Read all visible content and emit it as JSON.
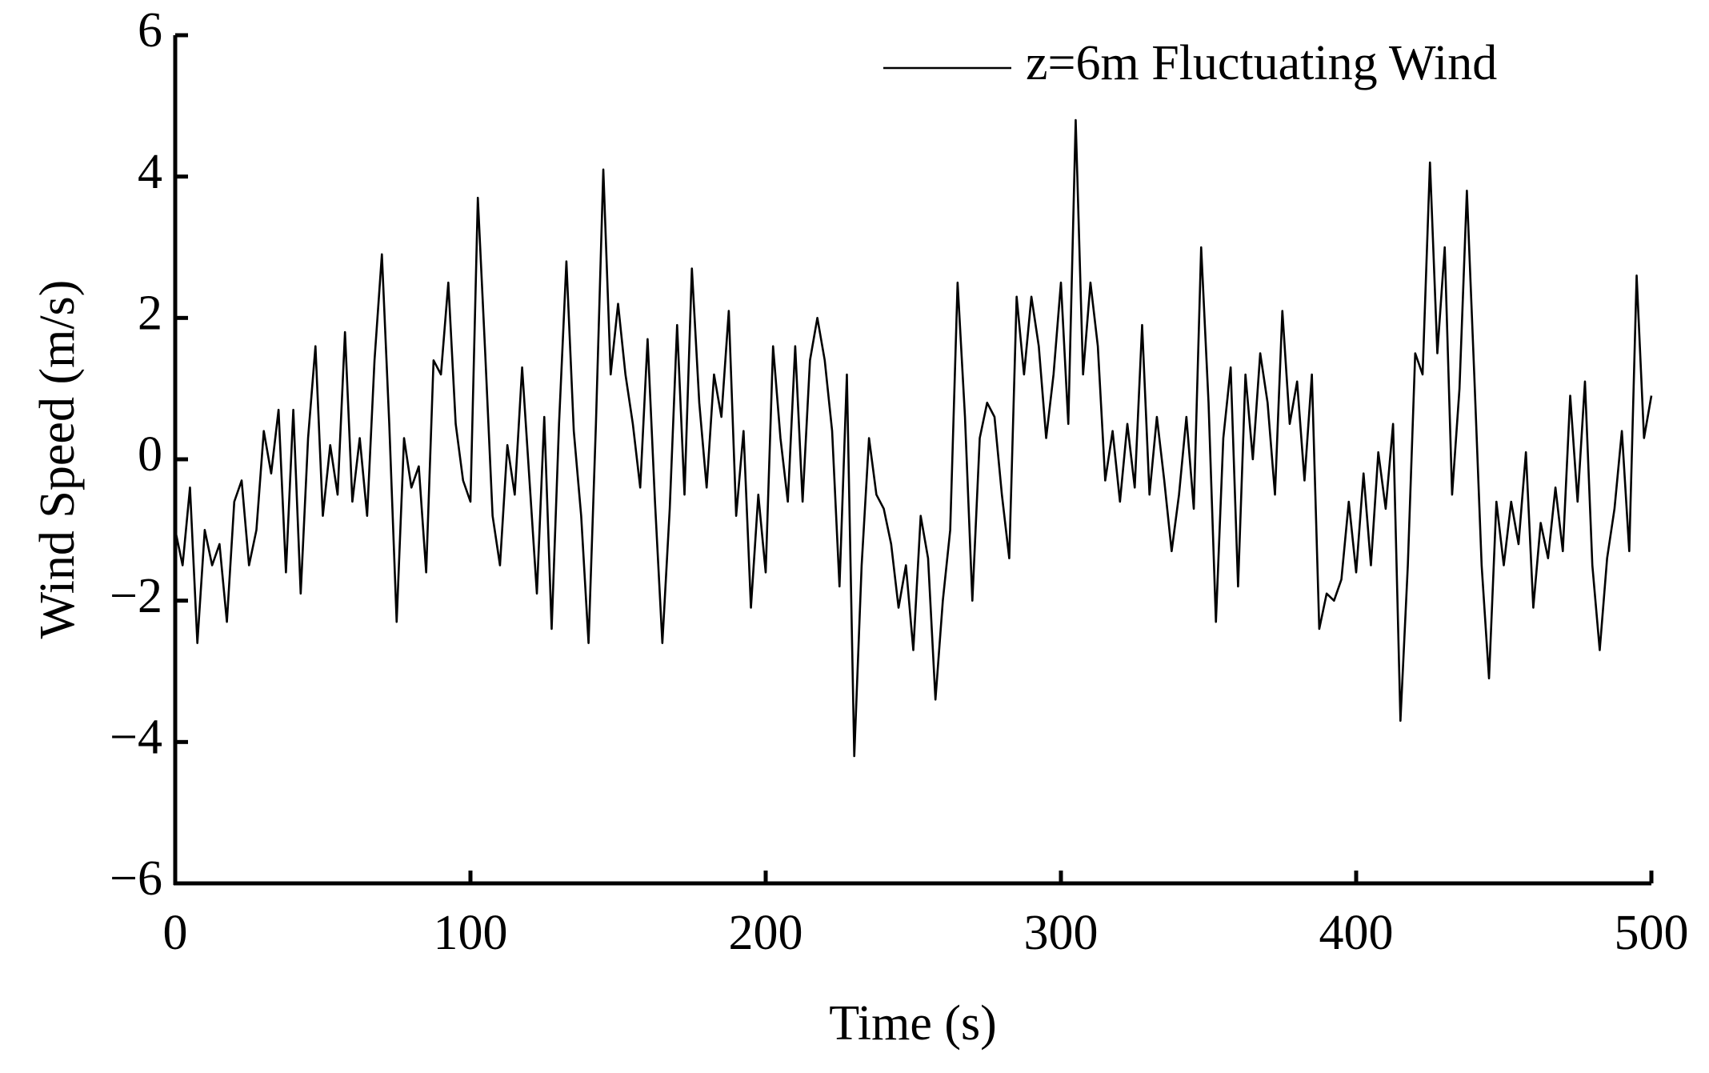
{
  "chart_data": {
    "type": "line",
    "xlabel": "Time (s)",
    "ylabel": "Wind Speed (m/s)",
    "xlim": [
      0,
      500
    ],
    "xticks": [
      0,
      100,
      200,
      300,
      400,
      500
    ],
    "ylim": [
      -6,
      6
    ],
    "yticks": [
      {
        "value": -6,
        "label": "−6"
      },
      {
        "value": -4,
        "label": "−4"
      },
      {
        "value": -2,
        "label": "−2"
      },
      0,
      2,
      4,
      6
    ],
    "grid": false,
    "legend": "upper right",
    "x": [
      0,
      2.5,
      5,
      7.5,
      10,
      12.5,
      15,
      17.5,
      20,
      22.5,
      25,
      27.5,
      30,
      32.5,
      35,
      37.5,
      40,
      42.5,
      45,
      47.5,
      50,
      52.5,
      55,
      57.5,
      60,
      62.5,
      65,
      67.5,
      70,
      72.5,
      75,
      77.5,
      80,
      82.5,
      85,
      87.5,
      90,
      92.5,
      95,
      97.5,
      100,
      102.5,
      105,
      107.5,
      110,
      112.5,
      115,
      117.5,
      120,
      122.5,
      125,
      127.5,
      130,
      132.5,
      135,
      137.5,
      140,
      142.5,
      145,
      147.5,
      150,
      152.5,
      155,
      157.5,
      160,
      162.5,
      165,
      167.5,
      170,
      172.5,
      175,
      177.5,
      180,
      182.5,
      185,
      187.5,
      190,
      192.5,
      195,
      197.5,
      200,
      202.5,
      205,
      207.5,
      210,
      212.5,
      215,
      217.5,
      220,
      222.5,
      225,
      227.5,
      230,
      232.5,
      235,
      237.5,
      240,
      242.5,
      245,
      247.5,
      250,
      252.5,
      255,
      257.5,
      260,
      262.5,
      265,
      267.5,
      270,
      272.5,
      275,
      277.5,
      280,
      282.5,
      285,
      287.5,
      290,
      292.5,
      295,
      297.5,
      300,
      302.5,
      305,
      307.5,
      310,
      312.5,
      315,
      317.5,
      320,
      322.5,
      325,
      327.5,
      330,
      332.5,
      335,
      337.5,
      340,
      342.5,
      345,
      347.5,
      350,
      352.5,
      355,
      357.5,
      360,
      362.5,
      365,
      367.5,
      370,
      372.5,
      375,
      377.5,
      380,
      382.5,
      385,
      387.5,
      390,
      392.5,
      395,
      397.5,
      400,
      402.5,
      405,
      407.5,
      410,
      412.5,
      415,
      417.5,
      420,
      422.5,
      425,
      427.5,
      430,
      432.5,
      435,
      437.5,
      440,
      442.5,
      445,
      447.5,
      450,
      452.5,
      455,
      457.5,
      460,
      462.5,
      465,
      467.5,
      470,
      472.5,
      475,
      477.5,
      480,
      482.5,
      485,
      487.5,
      490,
      492.5,
      495,
      497.5,
      500
    ],
    "series": [
      {
        "name": "z=6m Fluctuating Wind",
        "color": "#000000",
        "values": [
          -1.0,
          -1.5,
          -0.4,
          -2.6,
          -1.0,
          -1.5,
          -1.2,
          -2.3,
          -0.6,
          -0.3,
          -1.5,
          -1.0,
          0.4,
          -0.2,
          0.7,
          -1.6,
          0.7,
          -1.9,
          0.3,
          1.6,
          -0.8,
          0.2,
          -0.5,
          1.8,
          -0.6,
          0.3,
          -0.8,
          1.4,
          2.9,
          0.5,
          -2.3,
          0.3,
          -0.4,
          -0.1,
          -1.6,
          1.4,
          1.2,
          2.5,
          0.5,
          -0.3,
          -0.6,
          3.7,
          1.5,
          -0.8,
          -1.5,
          0.2,
          -0.5,
          1.3,
          -0.3,
          -1.9,
          0.6,
          -2.4,
          0.5,
          2.8,
          0.4,
          -0.8,
          -2.6,
          0.5,
          4.1,
          1.2,
          2.2,
          1.2,
          0.5,
          -0.4,
          1.7,
          -0.6,
          -2.6,
          -0.7,
          1.9,
          -0.5,
          2.7,
          0.8,
          -0.4,
          1.2,
          0.6,
          2.1,
          -0.8,
          0.4,
          -2.1,
          -0.5,
          -1.6,
          1.6,
          0.3,
          -0.6,
          1.6,
          -0.6,
          1.4,
          2.0,
          1.4,
          0.4,
          -1.8,
          1.2,
          -4.2,
          -1.5,
          0.3,
          -0.5,
          -0.7,
          -1.2,
          -2.1,
          -1.5,
          -2.7,
          -0.8,
          -1.4,
          -3.4,
          -2.0,
          -1.0,
          2.5,
          0.6,
          -2.0,
          0.3,
          0.8,
          0.6,
          -0.5,
          -1.4,
          2.3,
          1.2,
          2.3,
          1.6,
          0.3,
          1.2,
          2.5,
          0.5,
          4.8,
          1.2,
          2.5,
          1.6,
          -0.3,
          0.4,
          -0.6,
          0.5,
          -0.4,
          1.9,
          -0.5,
          0.6,
          -0.3,
          -1.3,
          -0.5,
          0.6,
          -0.7,
          3.0,
          0.8,
          -2.3,
          0.3,
          1.3,
          -1.8,
          1.2,
          0.0,
          1.5,
          0.8,
          -0.5,
          2.1,
          0.5,
          1.1,
          -0.3,
          1.2,
          -2.4,
          -1.9,
          -2.0,
          -1.7,
          -0.6,
          -1.6,
          -0.2,
          -1.5,
          0.1,
          -0.7,
          0.5,
          -3.7,
          -1.5,
          1.5,
          1.2,
          4.2,
          1.5,
          3.0,
          -0.5,
          1.0,
          3.8,
          1.2,
          -1.5,
          -3.1,
          -0.6,
          -1.5,
          -0.6,
          -1.2,
          0.1,
          -2.1,
          -0.9,
          -1.4,
          -0.4,
          -1.3,
          0.9,
          -0.6,
          1.1,
          -1.5,
          -2.7,
          -1.4,
          -0.7,
          0.4,
          -1.3,
          2.6,
          0.3,
          0.9
        ]
      }
    ]
  }
}
